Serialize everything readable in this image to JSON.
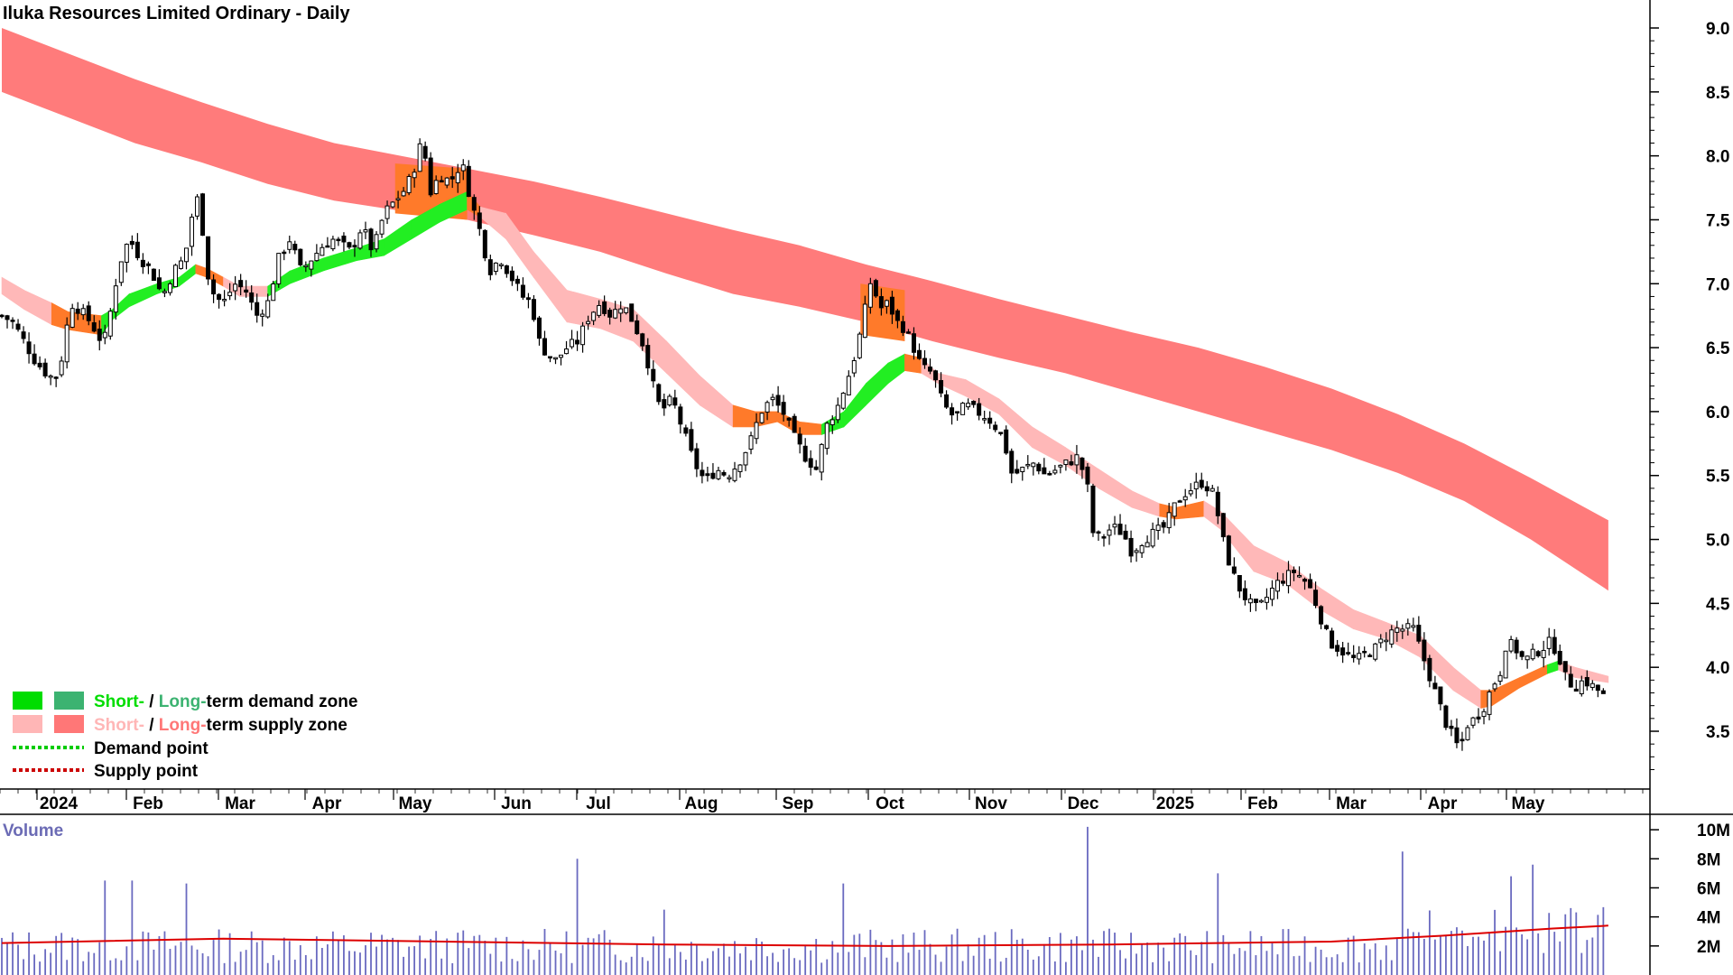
{
  "chart_data": [
    {
      "type": "candlestick",
      "title": "Iluka Resources Limited Ordinary - Daily",
      "y_ticks": [
        "9.0",
        "8.5",
        "8.0",
        "7.5",
        "7.0",
        "6.5",
        "6.0",
        "5.5",
        "5.0",
        "4.5",
        "4.0",
        "3.5"
      ],
      "ylim": [
        3.1,
        9.15
      ],
      "x_labels": [
        "2024",
        "Feb",
        "Mar",
        "Apr",
        "May",
        "Jun",
        "Jul",
        "Aug",
        "Sep",
        "Oct",
        "Nov",
        "Dec",
        "2025",
        "Feb",
        "Mar",
        "Apr",
        "May"
      ],
      "close_points": [
        [
          0,
          6.75
        ],
        [
          10,
          6.7
        ],
        [
          20,
          6.55
        ],
        [
          30,
          6.4
        ],
        [
          40,
          6.3
        ],
        [
          48,
          6.25
        ],
        [
          55,
          6.45
        ],
        [
          62,
          6.85
        ],
        [
          70,
          6.8
        ],
        [
          80,
          6.7
        ],
        [
          90,
          6.55
        ],
        [
          95,
          6.6
        ],
        [
          100,
          6.9
        ],
        [
          108,
          7.2
        ],
        [
          115,
          7.35
        ],
        [
          125,
          7.2
        ],
        [
          135,
          7.1
        ],
        [
          145,
          6.9
        ],
        [
          155,
          7.1
        ],
        [
          165,
          7.2
        ],
        [
          172,
          7.55
        ],
        [
          178,
          7.7
        ],
        [
          185,
          7.1
        ],
        [
          192,
          6.9
        ],
        [
          200,
          6.85
        ],
        [
          210,
          7.0
        ],
        [
          220,
          6.95
        ],
        [
          230,
          6.75
        ],
        [
          240,
          6.85
        ],
        [
          250,
          7.2
        ],
        [
          260,
          7.35
        ],
        [
          270,
          7.1
        ],
        [
          280,
          7.2
        ],
        [
          290,
          7.3
        ],
        [
          300,
          7.35
        ],
        [
          315,
          7.25
        ],
        [
          325,
          7.45
        ],
        [
          335,
          7.25
        ],
        [
          345,
          7.55
        ],
        [
          355,
          7.65
        ],
        [
          365,
          7.75
        ],
        [
          372,
          7.9
        ],
        [
          380,
          8.15
        ],
        [
          386,
          7.7
        ],
        [
          395,
          7.85
        ],
        [
          405,
          7.8
        ],
        [
          415,
          7.95
        ],
        [
          425,
          7.6
        ],
        [
          432,
          7.4
        ],
        [
          440,
          7.1
        ],
        [
          450,
          7.2
        ],
        [
          460,
          7.05
        ],
        [
          470,
          6.9
        ],
        [
          478,
          6.85
        ],
        [
          485,
          6.55
        ],
        [
          492,
          6.45
        ],
        [
          500,
          6.4
        ],
        [
          510,
          6.5
        ],
        [
          520,
          6.55
        ],
        [
          530,
          6.75
        ],
        [
          540,
          6.85
        ],
        [
          550,
          6.75
        ],
        [
          560,
          6.85
        ],
        [
          570,
          6.7
        ],
        [
          580,
          6.5
        ],
        [
          588,
          6.2
        ],
        [
          595,
          6.0
        ],
        [
          605,
          6.1
        ],
        [
          615,
          5.85
        ],
        [
          625,
          5.6
        ],
        [
          635,
          5.45
        ],
        [
          645,
          5.55
        ],
        [
          655,
          5.5
        ],
        [
          665,
          5.6
        ],
        [
          675,
          5.75
        ],
        [
          685,
          6.0
        ],
        [
          695,
          6.1
        ],
        [
          705,
          6.0
        ],
        [
          715,
          5.8
        ],
        [
          725,
          5.65
        ],
        [
          735,
          5.55
        ],
        [
          745,
          5.9
        ],
        [
          755,
          6.05
        ],
        [
          765,
          6.3
        ],
        [
          772,
          6.5
        ],
        [
          778,
          6.75
        ],
        [
          785,
          7.05
        ],
        [
          792,
          6.8
        ],
        [
          800,
          6.85
        ],
        [
          808,
          6.7
        ],
        [
          815,
          6.65
        ],
        [
          823,
          6.5
        ],
        [
          830,
          6.35
        ],
        [
          840,
          6.3
        ],
        [
          850,
          6.05
        ],
        [
          860,
          5.95
        ],
        [
          870,
          6.05
        ],
        [
          880,
          6.0
        ],
        [
          890,
          5.95
        ],
        [
          900,
          5.85
        ],
        [
          905,
          5.75
        ],
        [
          912,
          5.5
        ],
        [
          922,
          5.55
        ],
        [
          932,
          5.6
        ],
        [
          942,
          5.5
        ],
        [
          952,
          5.55
        ],
        [
          962,
          5.6
        ],
        [
          972,
          5.65
        ],
        [
          980,
          5.4
        ],
        [
          985,
          5.05
        ],
        [
          992,
          5.0
        ],
        [
          1002,
          5.1
        ],
        [
          1012,
          5.05
        ],
        [
          1020,
          4.9
        ],
        [
          1030,
          5.0
        ],
        [
          1040,
          5.05
        ],
        [
          1050,
          5.1
        ],
        [
          1058,
          5.25
        ],
        [
          1066,
          5.35
        ],
        [
          1074,
          5.4
        ],
        [
          1084,
          5.45
        ],
        [
          1094,
          5.35
        ],
        [
          1102,
          5.0
        ],
        [
          1110,
          4.75
        ],
        [
          1118,
          4.6
        ],
        [
          1126,
          4.5
        ],
        [
          1134,
          4.45
        ],
        [
          1142,
          4.55
        ],
        [
          1150,
          4.65
        ],
        [
          1158,
          4.7
        ],
        [
          1166,
          4.75
        ],
        [
          1174,
          4.7
        ],
        [
          1182,
          4.6
        ],
        [
          1190,
          4.4
        ],
        [
          1198,
          4.2
        ],
        [
          1206,
          4.15
        ],
        [
          1214,
          4.1
        ],
        [
          1222,
          4.05
        ],
        [
          1230,
          4.1
        ],
        [
          1240,
          4.15
        ],
        [
          1250,
          4.25
        ],
        [
          1258,
          4.3
        ],
        [
          1266,
          4.3
        ],
        [
          1274,
          4.3
        ],
        [
          1280,
          4.15
        ],
        [
          1286,
          4.0
        ],
        [
          1292,
          3.85
        ],
        [
          1298,
          3.7
        ],
        [
          1304,
          3.55
        ],
        [
          1310,
          3.45
        ],
        [
          1316,
          3.35
        ],
        [
          1322,
          3.55
        ],
        [
          1330,
          3.6
        ],
        [
          1338,
          3.7
        ],
        [
          1345,
          3.85
        ],
        [
          1352,
          3.95
        ],
        [
          1358,
          4.2
        ],
        [
          1366,
          4.15
        ],
        [
          1374,
          4.05
        ],
        [
          1382,
          4.1
        ],
        [
          1390,
          4.15
        ],
        [
          1398,
          4.2
        ],
        [
          1405,
          4.1
        ],
        [
          1412,
          3.9
        ],
        [
          1420,
          3.85
        ],
        [
          1428,
          3.9
        ],
        [
          1436,
          3.85
        ],
        [
          1444,
          3.8
        ],
        [
          1450,
          3.7
        ]
      ],
      "long_term_supply_zone": [
        [
          0,
          9.0,
          8.5
        ],
        [
          60,
          8.8,
          8.3
        ],
        [
          120,
          8.6,
          8.1
        ],
        [
          180,
          8.42,
          7.95
        ],
        [
          240,
          8.25,
          7.78
        ],
        [
          300,
          8.1,
          7.65
        ],
        [
          360,
          8.0,
          7.57
        ],
        [
          420,
          7.9,
          7.5
        ],
        [
          480,
          7.8,
          7.38
        ],
        [
          540,
          7.68,
          7.25
        ],
        [
          600,
          7.55,
          7.08
        ],
        [
          660,
          7.42,
          6.92
        ],
        [
          720,
          7.3,
          6.82
        ],
        [
          780,
          7.15,
          6.7
        ],
        [
          840,
          7.02,
          6.55
        ],
        [
          900,
          6.88,
          6.42
        ],
        [
          960,
          6.75,
          6.3
        ],
        [
          1020,
          6.62,
          6.15
        ],
        [
          1080,
          6.5,
          6.0
        ],
        [
          1140,
          6.35,
          5.85
        ],
        [
          1200,
          6.18,
          5.7
        ],
        [
          1260,
          5.98,
          5.52
        ],
        [
          1320,
          5.75,
          5.3
        ],
        [
          1380,
          5.48,
          5.0
        ],
        [
          1450,
          5.15,
          4.6
        ]
      ],
      "long_term_zone_orange": [
        [
          355,
          7.94,
          7.55
        ],
        [
          420,
          7.9,
          7.5
        ],
        [
          775,
          7.0,
          6.6
        ],
        [
          815,
          6.95,
          6.55
        ]
      ],
      "short_term_band": [
        [
          0,
          7.05,
          6.92,
          "supply"
        ],
        [
          20,
          6.95,
          6.8,
          "supply"
        ],
        [
          45,
          6.85,
          6.68,
          "supply"
        ],
        [
          60,
          6.78,
          6.64,
          "demand-orange"
        ],
        [
          90,
          6.75,
          6.6,
          "demand-orange"
        ],
        [
          100,
          6.8,
          6.72,
          "demand"
        ],
        [
          115,
          6.92,
          6.82,
          "demand"
        ],
        [
          140,
          7.0,
          6.92,
          "demand"
        ],
        [
          160,
          7.05,
          6.98,
          "demand"
        ],
        [
          175,
          7.15,
          7.08,
          "demand"
        ],
        [
          185,
          7.12,
          7.05,
          "demand-orange"
        ],
        [
          200,
          7.05,
          6.98,
          "demand-orange"
        ],
        [
          215,
          6.98,
          6.9,
          "supply"
        ],
        [
          240,
          6.98,
          6.9,
          "supply"
        ],
        [
          260,
          7.1,
          7.0,
          "demand"
        ],
        [
          290,
          7.2,
          7.1,
          "demand"
        ],
        [
          320,
          7.28,
          7.18,
          "demand"
        ],
        [
          345,
          7.35,
          7.22,
          "demand"
        ],
        [
          370,
          7.5,
          7.35,
          "demand"
        ],
        [
          395,
          7.62,
          7.48,
          "demand"
        ],
        [
          420,
          7.72,
          7.58,
          "demand"
        ],
        [
          432,
          7.6,
          7.52,
          "demand-orange"
        ],
        [
          455,
          7.55,
          7.35,
          "supply"
        ],
        [
          480,
          7.25,
          7.05,
          "supply"
        ],
        [
          510,
          6.95,
          6.7,
          "supply"
        ],
        [
          540,
          6.88,
          6.65,
          "supply"
        ],
        [
          570,
          6.8,
          6.55,
          "supply"
        ],
        [
          600,
          6.55,
          6.3,
          "supply"
        ],
        [
          630,
          6.28,
          6.05,
          "supply"
        ],
        [
          660,
          6.05,
          5.88,
          "supply"
        ],
        [
          680,
          6.0,
          5.88,
          "demand-orange"
        ],
        [
          700,
          6.0,
          5.92,
          "demand-orange"
        ],
        [
          720,
          5.92,
          5.82,
          "demand-orange"
        ],
        [
          740,
          5.9,
          5.82,
          "demand-orange"
        ],
        [
          760,
          6.0,
          5.88,
          "demand"
        ],
        [
          780,
          6.22,
          6.05,
          "demand"
        ],
        [
          800,
          6.38,
          6.22,
          "demand"
        ],
        [
          815,
          6.45,
          6.32,
          "demand"
        ],
        [
          830,
          6.42,
          6.3,
          "demand-orange"
        ],
        [
          845,
          6.3,
          6.22,
          "supply"
        ],
        [
          870,
          6.25,
          6.12,
          "supply"
        ],
        [
          900,
          6.1,
          5.98,
          "supply"
        ],
        [
          930,
          5.88,
          5.72,
          "supply"
        ],
        [
          960,
          5.72,
          5.58,
          "supply"
        ],
        [
          990,
          5.55,
          5.4,
          "supply"
        ],
        [
          1020,
          5.38,
          5.25,
          "supply"
        ],
        [
          1045,
          5.28,
          5.18,
          "supply"
        ],
        [
          1060,
          5.25,
          5.16,
          "demand-orange"
        ],
        [
          1085,
          5.3,
          5.18,
          "demand-orange"
        ],
        [
          1100,
          5.22,
          5.08,
          "supply"
        ],
        [
          1130,
          4.95,
          4.75,
          "supply"
        ],
        [
          1160,
          4.82,
          4.65,
          "supply"
        ],
        [
          1190,
          4.62,
          4.45,
          "supply"
        ],
        [
          1220,
          4.45,
          4.3,
          "supply"
        ],
        [
          1250,
          4.35,
          4.22,
          "supply"
        ],
        [
          1280,
          4.25,
          4.08,
          "supply"
        ],
        [
          1310,
          4.0,
          3.82,
          "supply"
        ],
        [
          1335,
          3.82,
          3.68,
          "supply"
        ],
        [
          1345,
          3.82,
          3.7,
          "demand-orange"
        ],
        [
          1370,
          3.92,
          3.84,
          "demand-orange"
        ],
        [
          1395,
          4.02,
          3.95,
          "demand-orange"
        ],
        [
          1405,
          4.05,
          3.98,
          "demand"
        ],
        [
          1420,
          4.0,
          3.92,
          "supply"
        ],
        [
          1450,
          3.93,
          3.88,
          "supply"
        ]
      ]
    },
    {
      "type": "bar",
      "title": "Volume",
      "y_ticks": [
        "10M",
        "8M",
        "6M",
        "4M",
        "2M"
      ],
      "ylim": [
        0,
        11000000
      ],
      "spikes": [
        [
          118,
          6.5
        ],
        [
          95,
          6.5
        ],
        [
          168,
          6.3
        ],
        [
          520,
          8.0
        ],
        [
          600,
          4.5
        ],
        [
          758,
          6.3
        ],
        [
          980,
          10.2
        ],
        [
          1100,
          7.0
        ],
        [
          1263,
          8.5
        ],
        [
          1360,
          6.8
        ],
        [
          1380,
          7.6
        ],
        [
          1450,
          5.0
        ]
      ],
      "moving_average": [
        [
          0,
          2.2
        ],
        [
          200,
          2.5
        ],
        [
          400,
          2.3
        ],
        [
          600,
          2.1
        ],
        [
          800,
          2.0
        ],
        [
          1000,
          2.1
        ],
        [
          1200,
          2.3
        ],
        [
          1300,
          2.7
        ],
        [
          1400,
          3.2
        ],
        [
          1450,
          3.4
        ]
      ]
    }
  ],
  "legend": [
    {
      "short": "Short-",
      "sep": " / ",
      "long": "Long-",
      "rest": "term demand zone",
      "short_color": "#00dd00",
      "long_color": "#3cb371"
    },
    {
      "short": "Short-",
      "sep": " / ",
      "long": "Long-",
      "rest": "term supply zone",
      "short_color": "#ffb6b6",
      "long_color": "#ff7777"
    },
    {
      "label": "Demand point",
      "color": "#00cc00"
    },
    {
      "label": "Supply point",
      "color": "#cc0000"
    }
  ],
  "colors": {
    "long_supply": "#ff7b7b",
    "short_supply": "#ffb8b8",
    "short_demand": "#22ee22",
    "zone_orange": "#ff7a2a",
    "candle": "#000000",
    "volume_bar": "#6a6ac0",
    "volume_ma": "#dd0000"
  }
}
